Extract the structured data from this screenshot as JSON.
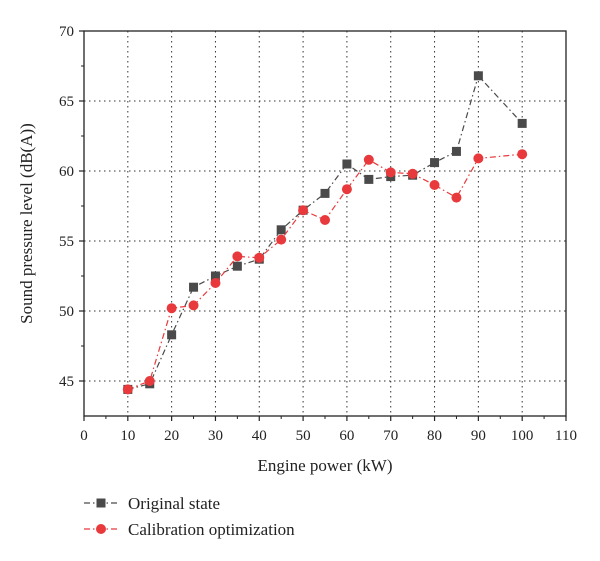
{
  "chart_data": {
    "type": "line",
    "title": "",
    "xlabel": "Engine power (kW)",
    "ylabel": "Sound pressure level (dB(A))",
    "xlim": [
      0,
      110
    ],
    "ylim": [
      42.5,
      70
    ],
    "xticks": [
      0,
      10,
      20,
      30,
      40,
      50,
      60,
      70,
      80,
      90,
      100,
      110
    ],
    "yticks": [
      45,
      50,
      55,
      60,
      65,
      70
    ],
    "grid": true,
    "legend_position": "below the plot",
    "x": [
      10,
      15,
      20,
      25,
      30,
      35,
      40,
      45,
      50,
      55,
      60,
      65,
      70,
      75,
      80,
      85,
      90,
      100
    ],
    "series": [
      {
        "name": "Original state",
        "color": "#4a4a4a",
        "marker": "square",
        "line_style": "dash-dot",
        "values": [
          44.4,
          44.8,
          48.3,
          51.7,
          52.5,
          53.2,
          53.7,
          55.8,
          57.2,
          58.4,
          60.5,
          59.4,
          59.6,
          59.7,
          60.6,
          61.4,
          66.8,
          63.4
        ]
      },
      {
        "name": "Calibration optimization",
        "color": "#e8393c",
        "marker": "circle",
        "line_style": "dash-dot",
        "values": [
          44.4,
          45.0,
          50.2,
          50.4,
          52.0,
          53.9,
          53.8,
          55.1,
          57.2,
          56.5,
          58.7,
          60.8,
          59.9,
          59.8,
          59.0,
          58.1,
          60.9,
          61.2
        ]
      }
    ]
  }
}
